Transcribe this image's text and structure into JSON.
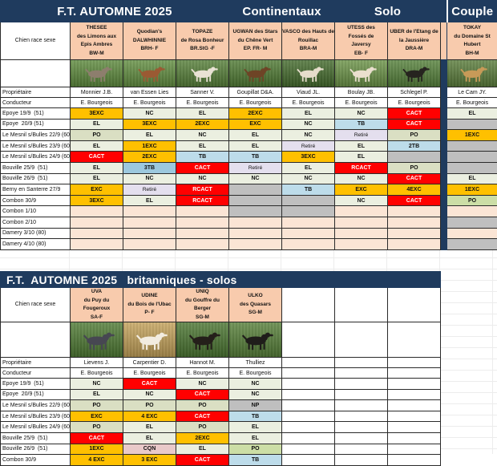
{
  "colors": {
    "navy": "#1F3B5E",
    "header_peach": "#F8CBAD",
    "gold": "#FFC000",
    "red": "#FF0000",
    "sage": "#EBEFE0",
    "olive": "#DADFC3",
    "green": "#CCDEA6",
    "blue_light": "#BDDCEA",
    "blue": "#9CC8DE",
    "lavender": "#E4DFEE",
    "gray": "#BFBFBF",
    "pink": "#FBE5D5",
    "rose": "#E9C9C9"
  },
  "tables": [
    {
      "id": "continentaux",
      "banner": [
        {
          "text": "F.T. AUTOMNE 2025",
          "span": 4
        },
        {
          "text": "Continentaux",
          "span": 2
        },
        {
          "text": "Solo",
          "span": 2
        },
        {
          "text": "",
          "span": 1,
          "sep": true
        },
        {
          "text": "Couple",
          "span": 1
        }
      ],
      "corner_label": "Chien race sexe",
      "owner_label": "Propriétaire",
      "handler_label": "Conducteur",
      "dogs": [
        {
          "name": "THESEE\ndes Limons aux\nEpis Ambres\nBW-M",
          "owner": "Monnier J.B.",
          "handler": "E. Bourgeois",
          "photo": {
            "field": "#5d8a3c",
            "coat": "#8d7e6d"
          }
        },
        {
          "name": "Quodian's\nDALWHINNIE\nBRH- F",
          "owner": "van Essen Lies",
          "handler": "E. Bourgeois",
          "photo": {
            "field": "#628e40",
            "coat": "#9a5a33"
          }
        },
        {
          "name": "TOPAZE\nde Rosa Bonheur\nBR.StG -F",
          "owner": "Sanner V.",
          "handler": "E. Bourgeois",
          "photo": {
            "field": "#567f38",
            "coat": "#e9e2d4"
          }
        },
        {
          "name": "UGWAN des Stars\ndu Chêne Vert\nEP. FR- M",
          "owner": "Goupillat D&A.",
          "handler": "E. Bourgeois",
          "photo": {
            "field": "#4f7a33",
            "coat": "#6e4426"
          }
        },
        {
          "name": "VASCO des Hauts de\nRouillac\nBRA-M",
          "owner": "Viaud JL.",
          "handler": "E. Bourgeois",
          "photo": {
            "field": "#446b2c",
            "coat": "#e6ddcb"
          }
        },
        {
          "name": "UTESS des\nFossés de\nJaversy\nEB- F",
          "owner": "Boulay JB.",
          "handler": "E. Bourgeois",
          "photo": {
            "field": "#6b9347",
            "coat": "#eadfce"
          }
        },
        {
          "name": "UBER de l'Etang de\nla Jaussière\nDRA-M",
          "owner": "Schlegel P.",
          "handler": "E. Bourgeois",
          "photo": {
            "field": "#55813a",
            "coat": "#26241f"
          }
        },
        {
          "name": "TOKAY\ndu Domaine St\nHubert\nBH-M",
          "owner": "Le Cam JY.",
          "handler": "E. Bourgeois",
          "photo": {
            "field": "#5a7c3a",
            "coat": "#c79a58"
          },
          "sep_before": true
        }
      ],
      "events": [
        {
          "label": "Epoye 19/9  (51)",
          "cells": [
            [
              "3EXC",
              "gold"
            ],
            [
              "NC",
              "sage"
            ],
            [
              "EL",
              "sage"
            ],
            [
              "2EXC",
              "gold"
            ],
            [
              "EL",
              "sage"
            ],
            [
              "NC",
              "sage"
            ],
            [
              "CACT",
              "red"
            ],
            [
              "EL",
              "sage"
            ]
          ]
        },
        {
          "label": "Epoye  20/9 (51)",
          "cells": [
            [
              "EL",
              "sage"
            ],
            [
              "3EXC",
              "gold"
            ],
            [
              "2EXC",
              "gold"
            ],
            [
              "EXC",
              "gold"
            ],
            [
              "NC",
              "sage"
            ],
            [
              "TB",
              "blue_light"
            ],
            [
              "CACT",
              "red"
            ],
            [
              "",
              "gray"
            ]
          ]
        },
        {
          "label": "Le Mesnil s/Bulles 22/9 (60",
          "cells": [
            [
              "PO",
              "olive"
            ],
            [
              "EL",
              "sage"
            ],
            [
              "NC",
              "sage"
            ],
            [
              "EL",
              "sage"
            ],
            [
              "NC",
              "sage"
            ],
            [
              "Retiré",
              "lavender"
            ],
            [
              "PO",
              "olive"
            ],
            [
              "1EXC",
              "gold"
            ]
          ]
        },
        {
          "label": "Le Mesnil s/Bulles 23/9 (60",
          "cells": [
            [
              "EL",
              "sage"
            ],
            [
              "1EXC",
              "gold"
            ],
            [
              "EL",
              "sage"
            ],
            [
              "EL",
              "sage"
            ],
            [
              "Retiré",
              "lavender"
            ],
            [
              "EL",
              "sage"
            ],
            [
              "2TB",
              "blue_light"
            ],
            [
              "",
              "gray"
            ]
          ]
        },
        {
          "label": "Le Mesnil s/Bulles 24/9 (60",
          "cells": [
            [
              "CACT",
              "red"
            ],
            [
              "2EXC",
              "gold"
            ],
            [
              "TB",
              "blue_light"
            ],
            [
              "TB",
              "blue_light"
            ],
            [
              "3EXC",
              "gold"
            ],
            [
              "EL",
              "sage"
            ],
            [
              "",
              "gray"
            ],
            [
              "",
              "gray"
            ]
          ]
        },
        {
          "label": "Bouville 25/9  (51)",
          "cells": [
            [
              "EL",
              "sage"
            ],
            [
              "3TB",
              "blue"
            ],
            [
              "CACT",
              "red"
            ],
            [
              "Retiré",
              "lavender"
            ],
            [
              "EL",
              "sage"
            ],
            [
              "RCACT",
              "red"
            ],
            [
              "PO",
              "olive"
            ],
            [
              "",
              "gray"
            ]
          ]
        },
        {
          "label": "Bouville 26/9  (51)",
          "cells": [
            [
              "EL",
              "sage"
            ],
            [
              "NC",
              "sage"
            ],
            [
              "NC",
              "sage"
            ],
            [
              "NC",
              "sage"
            ],
            [
              "NC",
              "sage"
            ],
            [
              "NC",
              "sage"
            ],
            [
              "CACT",
              "red"
            ],
            [
              "EL",
              "sage"
            ]
          ]
        },
        {
          "label": "Berny en Santerre 27/9",
          "cells": [
            [
              "EXC",
              "gold"
            ],
            [
              "Retiré",
              "lavender"
            ],
            [
              "RCACT",
              "red"
            ],
            [
              "",
              "gray"
            ],
            [
              "TB",
              "blue_light"
            ],
            [
              "EXC",
              "gold"
            ],
            [
              "4EXC",
              "gold"
            ],
            [
              "1EXC",
              "gold"
            ]
          ]
        },
        {
          "label": "Combon 30/9",
          "cells": [
            [
              "3EXC",
              "gold"
            ],
            [
              "EL",
              "sage"
            ],
            [
              "RCACT",
              "red"
            ],
            [
              "",
              "gray"
            ],
            [
              "",
              "gray"
            ],
            [
              "NC",
              "sage"
            ],
            [
              "CACT",
              "red"
            ],
            [
              "PO",
              "green"
            ]
          ]
        },
        {
          "label": "Combon 1/10",
          "cells": [
            [
              "",
              "pink"
            ],
            [
              "",
              "pink"
            ],
            [
              "",
              "pink"
            ],
            [
              "",
              "gray"
            ],
            [
              "",
              "gray"
            ],
            [
              "",
              "pink"
            ],
            [
              "",
              "pink"
            ],
            [
              "",
              "pink"
            ]
          ]
        },
        {
          "label": "Combon 2/10",
          "cells": [
            [
              "",
              "pink"
            ],
            [
              "",
              "pink"
            ],
            [
              "",
              "pink"
            ],
            [
              "",
              "pink"
            ],
            [
              "",
              "pink"
            ],
            [
              "",
              "pink"
            ],
            [
              "",
              "pink"
            ],
            [
              "",
              "gray"
            ]
          ]
        },
        {
          "label": "Damery 3/10 (80)",
          "cells": [
            [
              "",
              "pink"
            ],
            [
              "",
              "pink"
            ],
            [
              "",
              "pink"
            ],
            [
              "",
              "pink"
            ],
            [
              "",
              "pink"
            ],
            [
              "",
              "pink"
            ],
            [
              "",
              "pink"
            ],
            [
              "",
              "pink"
            ]
          ]
        },
        {
          "label": "Damery 4/10 (80)",
          "cells": [
            [
              "",
              "pink"
            ],
            [
              "",
              "pink"
            ],
            [
              "",
              "pink"
            ],
            [
              "",
              "pink"
            ],
            [
              "",
              "pink"
            ],
            [
              "",
              "pink"
            ],
            [
              "",
              "pink"
            ],
            [
              "",
              "gray"
            ]
          ]
        }
      ]
    },
    {
      "id": "britanniques",
      "banner": [
        {
          "text": "F.T.  AUTOMNE 2025   britanniques - solos",
          "span": 8,
          "align": "left"
        }
      ],
      "corner_label": "Chien race sexe",
      "owner_label": "Propriétaire",
      "handler_label": "Conducteur",
      "trailing_empty": 3,
      "dogs": [
        {
          "name": "UVA\ndu Puy du\nFougeroux\nSA-F",
          "owner": "Lievens J.",
          "handler": "E. Bourgeois",
          "photo": {
            "field": "#4e7a33",
            "coat": "#474752"
          }
        },
        {
          "name": "UDINE\ndu Bois de l'Ubac\nP- F",
          "owner": "Carpentier D.",
          "handler": "E. Bourgeois",
          "photo": {
            "field": "#c3a159",
            "coat": "#f2ece0"
          }
        },
        {
          "name": "UNIQ\ndu Gouffre du Berger\nSG-M",
          "owner": "Hannot M.",
          "handler": "E. Bourgeois",
          "photo": {
            "field": "#4a7530",
            "coat": "#241f1a"
          }
        },
        {
          "name": "ULKO\ndes Quasars\nSG-M",
          "owner": "Thulliez",
          "handler": "E. Bourgeois",
          "photo": {
            "field": "#567f38",
            "coat": "#1f1d1a"
          }
        }
      ],
      "events": [
        {
          "label": "Epoye 19/9  (51)",
          "cells": [
            [
              "NC",
              "sage"
            ],
            [
              "CACT",
              "red"
            ],
            [
              "NC",
              "sage"
            ],
            [
              "NC",
              "sage"
            ]
          ]
        },
        {
          "label": "Epoye  20/9 (51)",
          "cells": [
            [
              "EL",
              "sage"
            ],
            [
              "NC",
              "sage"
            ],
            [
              "CACT",
              "red"
            ],
            [
              "NC",
              "sage"
            ]
          ]
        },
        {
          "label": "Le Mesnil s/Bulles 22/9 (60",
          "cells": [
            [
              "PO",
              "olive"
            ],
            [
              "PO",
              "olive"
            ],
            [
              "PO",
              "olive"
            ],
            [
              "NP",
              "gray"
            ]
          ]
        },
        {
          "label": "Le Mesnil s/Bulles 23/9 (60",
          "cells": [
            [
              "EXC",
              "gold"
            ],
            [
              "4 EXC",
              "gold"
            ],
            [
              "CACT",
              "red"
            ],
            [
              "TB",
              "blue_light"
            ]
          ]
        },
        {
          "label": "Le Mesnil s/Bulles 24/9 (60",
          "cells": [
            [
              "PO",
              "olive"
            ],
            [
              "EL",
              "sage"
            ],
            [
              "PO",
              "olive"
            ],
            [
              "EL",
              "sage"
            ]
          ]
        },
        {
          "label": "Bouville 25/9  (51)",
          "cells": [
            [
              "CACT",
              "red"
            ],
            [
              "EL",
              "sage"
            ],
            [
              "2EXC",
              "gold"
            ],
            [
              "EL",
              "sage"
            ]
          ]
        },
        {
          "label": "Bouville 26/9  (51)",
          "cells": [
            [
              "1EXC",
              "gold"
            ],
            [
              "CQN",
              "rose"
            ],
            [
              "EL",
              "sage"
            ],
            [
              "PO",
              "green"
            ]
          ]
        },
        {
          "label": "Combon 30/9",
          "cells": [
            [
              "4 EXC",
              "gold"
            ],
            [
              "3 EXC",
              "gold"
            ],
            [
              "CACT",
              "red"
            ],
            [
              "TB",
              "blue_light"
            ]
          ]
        }
      ]
    }
  ]
}
